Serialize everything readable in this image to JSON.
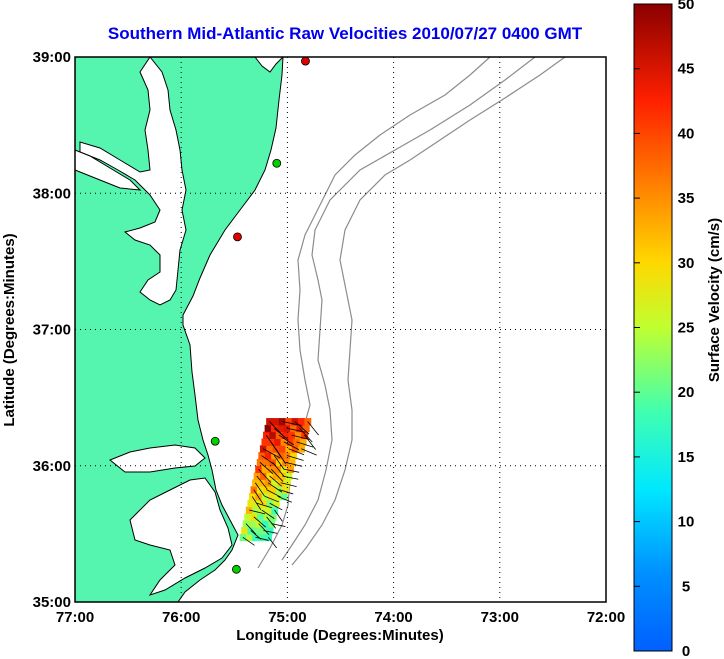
{
  "title": "Southern Mid-Atlantic Raw Velocities 2010/07/27 0400 GMT",
  "x_axis": {
    "label": "Longitude (Degrees:Minutes)",
    "ticks": [
      "77:00",
      "76:00",
      "75:00",
      "74:00",
      "73:00",
      "72:00"
    ],
    "lim": [
      -77,
      -72
    ]
  },
  "y_axis": {
    "label": "Latitude (Degrees:Minutes)",
    "ticks": [
      "39:00",
      "38:00",
      "37:00",
      "36:00",
      "35:00"
    ],
    "lim": [
      35,
      39
    ]
  },
  "colorbar": {
    "label": "Surface Velocity (cm/s)",
    "ticks": [
      "50",
      "45",
      "40",
      "35",
      "30",
      "25",
      "20",
      "15",
      "10",
      "5",
      "0"
    ],
    "range": [
      0,
      50
    ],
    "colormap": "jet"
  },
  "colors": {
    "land": "#55f5b0",
    "coast": "#000000",
    "bathymetry": "#888888",
    "grid": "#000000",
    "title": "#0000ee"
  },
  "stations": [
    {
      "lon": -74.83,
      "lat": 38.97,
      "status_color": "#e00000"
    },
    {
      "lon": -75.1,
      "lat": 38.22,
      "status_color": "#00d000"
    },
    {
      "lon": -75.47,
      "lat": 37.68,
      "status_color": "#e00000"
    },
    {
      "lon": -75.68,
      "lat": 36.18,
      "status_color": "#00d000"
    },
    {
      "lon": -75.48,
      "lat": 35.24,
      "status_color": "#00d000"
    }
  ],
  "grid": true,
  "velocity_field": {
    "lon_range": [
      -75.5,
      -74.65
    ],
    "lat_range": [
      35.45,
      36.3
    ],
    "speed_range_cm_s": [
      20,
      50
    ]
  }
}
